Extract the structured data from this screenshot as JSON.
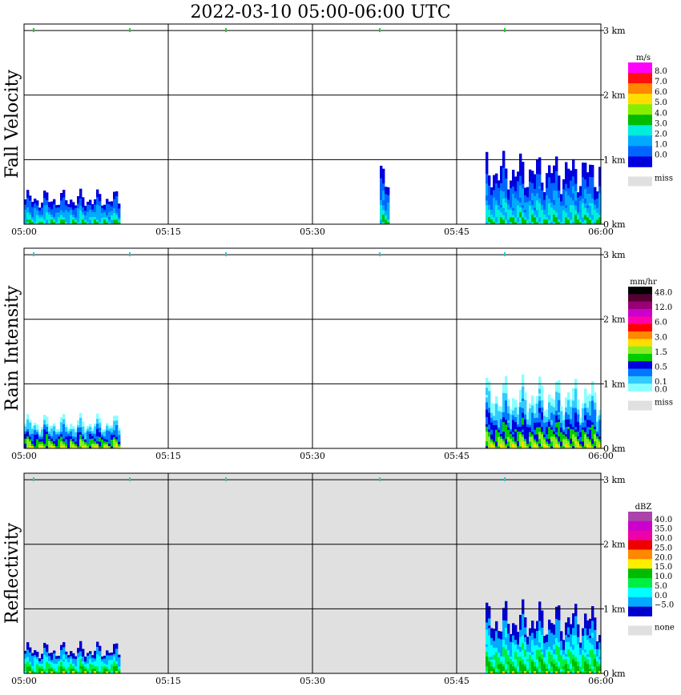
{
  "title": "2022-03-10   05:00-06:00 UTC",
  "colors": {
    "frame": "#000000",
    "missing_bg": "#e0e0e0",
    "tick_marker_green": "#22cc22",
    "tick_marker_cyan": "#22cccc"
  },
  "chart_data": [
    {
      "type": "heatmap",
      "panel_label": "Fall Velocity",
      "x_tick_labels": [
        "05:00",
        "05:15",
        "05:30",
        "05:45",
        "06:00"
      ],
      "y_tick_labels": [
        "0 km",
        "1 km",
        "2 km",
        "3 km"
      ],
      "xlim": [
        "05:00",
        "06:00"
      ],
      "ylim_km": [
        0,
        3.5
      ],
      "grid": true,
      "colorbar": {
        "unit": "m/s",
        "labels": [
          "8.0",
          "7.0",
          "6.0",
          "5.0",
          "4.0",
          "3.0",
          "2.0",
          "1.0",
          "0.0"
        ],
        "colors": [
          "#ff00ff",
          "#ff1010",
          "#ff8800",
          "#ffdd00",
          "#88ee00",
          "#00bb00",
          "#00eedd",
          "#00aaff",
          "#0066ff",
          "#0000dd"
        ],
        "missing_label": "miss",
        "missing_color": "#e0e0e0"
      },
      "echo_regions": [
        {
          "t_start": "05:00",
          "t_end": "05:10",
          "top_km": 0.55,
          "dominant_value": "0.0-2.0 m/s"
        },
        {
          "t_start": "05:37",
          "t_end": "05:38",
          "top_km": 0.95,
          "dominant_value": "0.0-1.0 m/s"
        },
        {
          "t_start": "05:48",
          "t_end": "06:00",
          "top_km": 1.15,
          "dominant_value": "0.0-2.0 m/s"
        }
      ]
    },
    {
      "type": "heatmap",
      "panel_label": "Rain Intensity",
      "x_tick_labels": [
        "05:00",
        "05:15",
        "05:30",
        "05:45",
        "06:00"
      ],
      "y_tick_labels": [
        "0 km",
        "1 km",
        "2 km",
        "3 km"
      ],
      "xlim": [
        "05:00",
        "06:00"
      ],
      "ylim_km": [
        0,
        3.5
      ],
      "grid": true,
      "colorbar": {
        "unit": "mm/hr",
        "labels": [
          "48.0",
          "12.0",
          "6.0",
          "3.0",
          "1.5",
          "0.5",
          "0.1",
          "0.0"
        ],
        "label_slots": [
          0,
          2,
          4,
          6,
          8,
          10,
          12,
          13
        ],
        "colors": [
          "#000000",
          "#550033",
          "#990077",
          "#cc00cc",
          "#ff00aa",
          "#ff0000",
          "#ff8800",
          "#ffdd00",
          "#88ee22",
          "#00cc00",
          "#0000dd",
          "#0077ff",
          "#33ccff",
          "#88ffff"
        ],
        "missing_label": "miss",
        "missing_color": "#e0e0e0"
      },
      "echo_regions": [
        {
          "t_start": "05:00",
          "t_end": "05:10",
          "top_km": 0.55,
          "dominant_value": "0.0-0.1 mm/hr"
        },
        {
          "t_start": "05:48",
          "t_end": "06:00",
          "top_km": 1.15,
          "dominant_value": "0.1-3.0 mm/hr"
        }
      ]
    },
    {
      "type": "heatmap",
      "panel_label": "Reflectivity",
      "x_tick_labels": [
        "05:00",
        "05:15",
        "05:30",
        "05:45",
        "06:00"
      ],
      "y_tick_labels": [
        "0 km",
        "1 km",
        "2 km",
        "3 km"
      ],
      "xlim": [
        "05:00",
        "06:00"
      ],
      "ylim_km": [
        0,
        3.5
      ],
      "grid": true,
      "colorbar": {
        "unit": "dBZ",
        "labels": [
          "40.0",
          "35.0",
          "30.0",
          "25.0",
          "20.0",
          "15.0",
          "10.0",
          "5.0",
          "0.0",
          "−5.0"
        ],
        "colors": [
          "#aa44aa",
          "#cc00cc",
          "#ee00aa",
          "#ee0000",
          "#ff8800",
          "#ffee00",
          "#00bb00",
          "#00ee44",
          "#00ffff",
          "#00aaff",
          "#0000cc"
        ],
        "missing_label": "none",
        "missing_color": "#e0e0e0"
      },
      "echo_regions": [
        {
          "t_start": "05:00",
          "t_end": "05:10",
          "top_km": 0.5,
          "dominant_value": "0.0-15.0 dBZ"
        },
        {
          "t_start": "05:48",
          "t_end": "06:00",
          "top_km": 1.15,
          "dominant_value": "5.0-20.0 dBZ"
        }
      ]
    }
  ]
}
